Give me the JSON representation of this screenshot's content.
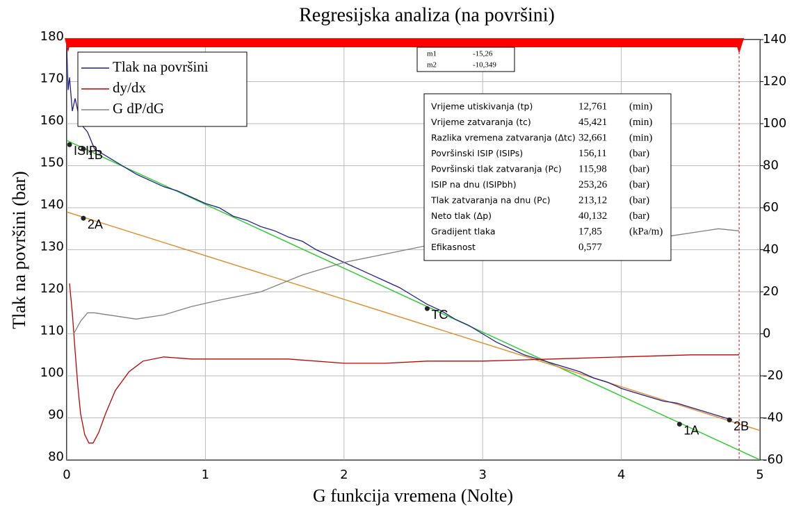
{
  "chart_data": {
    "type": "line",
    "title": "Regresijska analiza (na površini)",
    "xlabel": "G funkcija vremena (Nolte)",
    "ylabel": "Tlak na površini (bar)",
    "xlim": [
      0,
      5
    ],
    "xticks": [
      0,
      1,
      2,
      3,
      4,
      5
    ],
    "ylim": [
      80,
      180
    ],
    "yticks": [
      80,
      90,
      100,
      110,
      120,
      130,
      140,
      150,
      160,
      170,
      180
    ],
    "y2lim": [
      -60,
      140
    ],
    "y2ticks": [
      -60,
      -40,
      -20,
      0,
      20,
      40,
      60,
      80,
      100,
      120,
      140
    ],
    "grid": true,
    "legend": "top-left",
    "series": [
      {
        "name": "Tlak na površini",
        "color": "#1f1f8f",
        "x": [
          0,
          0.01,
          0.02,
          0.04,
          0.06,
          0.1,
          0.15,
          0.2,
          0.3,
          0.4,
          0.5,
          0.6,
          0.7,
          0.8,
          0.9,
          1.0,
          1.1,
          1.2,
          1.3,
          1.4,
          1.5,
          1.6,
          1.7,
          1.8,
          1.9,
          2.0,
          2.1,
          2.2,
          2.3,
          2.4,
          2.5,
          2.6,
          2.7,
          2.8,
          2.9,
          3.0,
          3.1,
          3.2,
          3.3,
          3.4,
          3.5,
          3.6,
          3.7,
          3.8,
          3.9,
          4.0,
          4.1,
          4.2,
          4.3,
          4.4,
          4.5,
          4.6,
          4.7,
          4.8
        ],
        "values": [
          178,
          168,
          171,
          163,
          166,
          160,
          158,
          154,
          152,
          150,
          148,
          146.5,
          145,
          144,
          142.5,
          141,
          140,
          138,
          137,
          135.5,
          134.5,
          133,
          132,
          130,
          128.5,
          127,
          125.5,
          124,
          122.5,
          121,
          119,
          117,
          115.5,
          113.5,
          112,
          110,
          108,
          106.5,
          105,
          104,
          103,
          102,
          101,
          99.5,
          98.5,
          97,
          96,
          95,
          94,
          93.5,
          92.5,
          91.5,
          90.5,
          89.5
        ]
      },
      {
        "name": "dy/dx",
        "color": "#c00000",
        "axis": "y2",
        "x": [
          0.02,
          0.04,
          0.06,
          0.08,
          0.1,
          0.13,
          0.16,
          0.19,
          0.23,
          0.28,
          0.35,
          0.45,
          0.55,
          0.7,
          0.9,
          1.2,
          1.6,
          2.0,
          2.3,
          2.6,
          3.0,
          3.5,
          4.0,
          4.5,
          4.85
        ],
        "values": [
          24,
          10,
          -8,
          -25,
          -38,
          -48,
          -52,
          -52,
          -47,
          -38,
          -27,
          -18,
          -13,
          -11,
          -12,
          -12,
          -12,
          -14,
          -14,
          -13,
          -13,
          -12,
          -11,
          -10,
          -10
        ]
      },
      {
        "name": "G dP/dG",
        "color": "#808080",
        "axis": "y2",
        "x": [
          0.05,
          0.1,
          0.15,
          0.2,
          0.3,
          0.5,
          0.7,
          0.9,
          1.1,
          1.4,
          1.7,
          2.0,
          2.3,
          2.6,
          2.9,
          3.2,
          3.5,
          3.8,
          4.1,
          4.4,
          4.7,
          4.85
        ],
        "values": [
          0,
          6,
          10,
          10,
          9,
          7,
          9,
          13,
          16,
          20,
          28,
          34,
          38,
          42,
          44,
          46,
          49,
          45,
          44,
          47,
          50,
          49
        ]
      }
    ],
    "fit_lines": [
      {
        "color": "#33cc33",
        "x": [
          0,
          5
        ],
        "values": [
          156,
          80
        ]
      },
      {
        "color": "#e09030",
        "x": [
          0,
          5
        ],
        "values": [
          139,
          87
        ]
      }
    ],
    "points": [
      {
        "label": "ISIP",
        "x": 0.02,
        "y": 155
      },
      {
        "label": "1B",
        "x": 0.12,
        "y": 154
      },
      {
        "label": "2A",
        "x": 0.12,
        "y": 137.5
      },
      {
        "label": "TC",
        "x": 2.6,
        "y": 116
      },
      {
        "label": "1A",
        "x": 4.42,
        "y": 88.5
      },
      {
        "label": "2B",
        "x": 4.78,
        "y": 89.5
      }
    ],
    "cursor_x": 4.85,
    "slopes": [
      [
        "m1",
        "-15,26"
      ],
      [
        "m2",
        "-10,349"
      ]
    ],
    "info": [
      [
        "Vrijeme utiskivanja (tp)",
        "12,761",
        "(min)"
      ],
      [
        "Vrijeme zatvaranja (tc)",
        "45,421",
        "(min)"
      ],
      [
        "Razlika vremena zatvaranja (Δtc)",
        "32,661",
        "(min)"
      ],
      [
        "Površinski ISIP (ISIPs)",
        "156,11",
        "(bar)"
      ],
      [
        "Površinski tlak zatvaranja (Pc)",
        "115,98",
        "(bar)"
      ],
      [
        "ISIP na dnu (ISIPbh)",
        "253,26",
        "(bar)"
      ],
      [
        "Tlak zatvaranja na dnu (Pc)",
        "213,12",
        "(bar)"
      ],
      [
        "Neto tlak (Δp)",
        "40,132",
        "(bar)"
      ],
      [
        "Gradijent tlaka",
        "17,85",
        "(kPa/m)"
      ],
      [
        "Efikasnost",
        "0,577"
      ]
    ]
  }
}
